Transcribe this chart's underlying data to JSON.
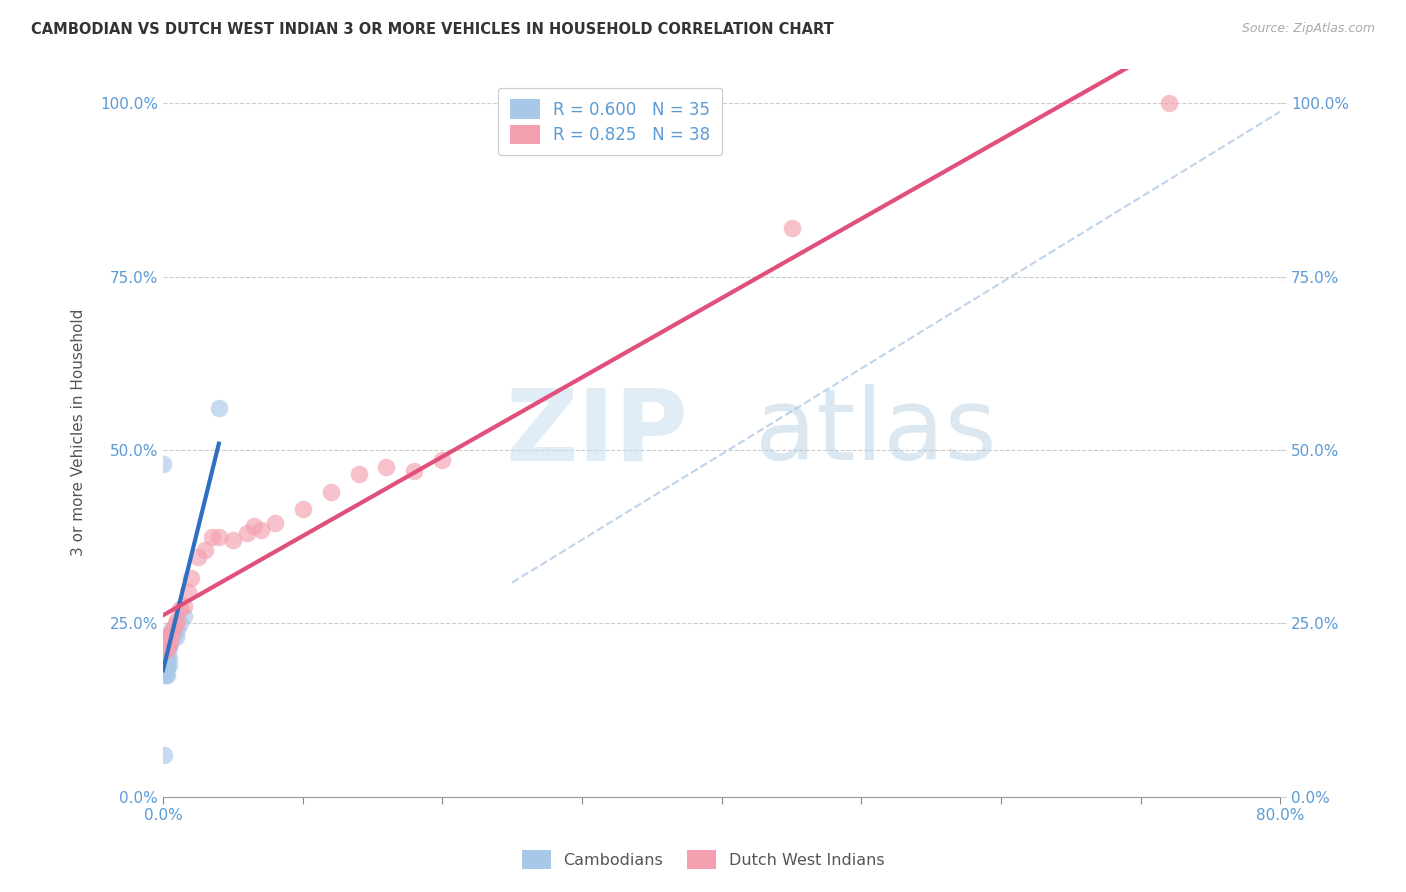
{
  "title": "CAMBODIAN VS DUTCH WEST INDIAN 3 OR MORE VEHICLES IN HOUSEHOLD CORRELATION CHART",
  "source": "Source: ZipAtlas.com",
  "ylabel_label": "3 or more Vehicles in Household",
  "legend_labels": [
    "Cambodians",
    "Dutch West Indians"
  ],
  "cambodian_R": 0.6,
  "cambodian_N": 35,
  "dutch_R": 0.825,
  "dutch_N": 38,
  "blue_scatter_color": "#a8c8e8",
  "pink_scatter_color": "#f4a0b0",
  "blue_line_color": "#3070c0",
  "pink_line_color": "#e0507a",
  "dashed_line_color": "#b8cfe8",
  "watermark_zip": "ZIP",
  "watermark_atlas": "atlas",
  "xmin": 0.0,
  "xmax": 0.8,
  "ymin": 0.0,
  "ymax": 1.05,
  "x_tick_vals": [
    0.0,
    0.1,
    0.2,
    0.3,
    0.4,
    0.5,
    0.6,
    0.7,
    0.8
  ],
  "y_tick_vals": [
    0.0,
    0.25,
    0.5,
    0.75,
    1.0
  ],
  "cambodian_points_x": [
    0.001,
    0.001,
    0.001,
    0.001,
    0.001,
    0.002,
    0.002,
    0.002,
    0.002,
    0.002,
    0.002,
    0.003,
    0.003,
    0.003,
    0.003,
    0.003,
    0.003,
    0.004,
    0.004,
    0.004,
    0.004,
    0.004,
    0.005,
    0.005,
    0.006,
    0.006,
    0.007,
    0.008,
    0.009,
    0.01,
    0.012,
    0.015,
    0.04,
    0.0,
    0.001
  ],
  "cambodian_points_y": [
    0.175,
    0.19,
    0.195,
    0.2,
    0.21,
    0.175,
    0.185,
    0.19,
    0.2,
    0.21,
    0.215,
    0.175,
    0.185,
    0.19,
    0.2,
    0.215,
    0.22,
    0.19,
    0.2,
    0.215,
    0.22,
    0.23,
    0.22,
    0.225,
    0.23,
    0.24,
    0.23,
    0.235,
    0.23,
    0.24,
    0.25,
    0.26,
    0.56,
    0.48,
    0.06
  ],
  "dutch_points_x": [
    0.001,
    0.001,
    0.002,
    0.002,
    0.002,
    0.003,
    0.003,
    0.003,
    0.004,
    0.004,
    0.005,
    0.005,
    0.006,
    0.007,
    0.008,
    0.009,
    0.01,
    0.012,
    0.015,
    0.018,
    0.02,
    0.025,
    0.03,
    0.035,
    0.04,
    0.05,
    0.06,
    0.065,
    0.07,
    0.08,
    0.1,
    0.12,
    0.14,
    0.16,
    0.18,
    0.2,
    0.45,
    0.72
  ],
  "dutch_points_y": [
    0.215,
    0.225,
    0.21,
    0.22,
    0.225,
    0.215,
    0.22,
    0.225,
    0.22,
    0.23,
    0.225,
    0.235,
    0.235,
    0.24,
    0.245,
    0.25,
    0.255,
    0.27,
    0.275,
    0.295,
    0.315,
    0.345,
    0.355,
    0.375,
    0.375,
    0.37,
    0.38,
    0.39,
    0.385,
    0.395,
    0.415,
    0.44,
    0.465,
    0.475,
    0.47,
    0.485,
    0.82,
    1.0
  ]
}
